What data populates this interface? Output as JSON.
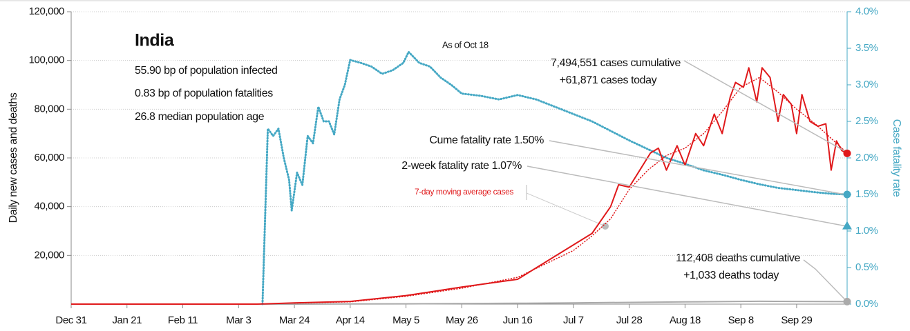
{
  "chart_data": {
    "type": "line",
    "title": "India",
    "subtitle": "As of Oct 18",
    "stats": [
      "55.90 bp of population infected",
      "0.83 bp of population fatalities",
      "26.8 median population age"
    ],
    "ylabel": "Daily new cases and deaths",
    "y2label": "Case fatality rate",
    "xlim": [
      0,
      292
    ],
    "xticks": [
      {
        "value": 0,
        "label": "Dec 31"
      },
      {
        "value": 21,
        "label": "Jan 21"
      },
      {
        "value": 42,
        "label": "Feb 11"
      },
      {
        "value": 63,
        "label": "Mar 3"
      },
      {
        "value": 84,
        "label": "Mar 24"
      },
      {
        "value": 105,
        "label": "Apr 14"
      },
      {
        "value": 126,
        "label": "May 5"
      },
      {
        "value": 147,
        "label": "May 26"
      },
      {
        "value": 168,
        "label": "Jun 16"
      },
      {
        "value": 189,
        "label": "Jul 7"
      },
      {
        "value": 210,
        "label": "Jul 28"
      },
      {
        "value": 231,
        "label": "Aug 18"
      },
      {
        "value": 252,
        "label": "Sep 8"
      },
      {
        "value": 273,
        "label": "Sep 29"
      }
    ],
    "ylim": [
      0,
      120000
    ],
    "yticks": [
      {
        "value": 20000,
        "label": "20,000"
      },
      {
        "value": 40000,
        "label": "40,000"
      },
      {
        "value": 60000,
        "label": "60,000"
      },
      {
        "value": 80000,
        "label": "80,000"
      },
      {
        "value": 100000,
        "label": "100,000"
      },
      {
        "value": 120000,
        "label": "120,000"
      }
    ],
    "y2lim": [
      0,
      4
    ],
    "y2ticks": [
      {
        "value": 0,
        "label": "0.0%"
      },
      {
        "value": 0.5,
        "label": "0.5%"
      },
      {
        "value": 1,
        "label": "1.0%"
      },
      {
        "value": 1.5,
        "label": "1.5%"
      },
      {
        "value": 2,
        "label": "2.0%"
      },
      {
        "value": 2.5,
        "label": "2.5%"
      },
      {
        "value": 3,
        "label": "3.0%"
      },
      {
        "value": 3.5,
        "label": "3.5%"
      },
      {
        "value": 4,
        "label": "4.0%"
      }
    ],
    "grid": true,
    "series": [
      {
        "color": "#aaaaaa",
        "style": "solid",
        "x": [
          0,
          84,
          126,
          168,
          189,
          231,
          259,
          292
        ],
        "values": [
          0,
          10,
          100,
          350,
          500,
          900,
          1150,
          1033
        ]
      },
      {
        "color": "#45a8c4",
        "style": "dotted",
        "axis": "y2",
        "x": [
          72,
          74,
          76,
          78,
          80,
          82,
          83,
          85,
          87,
          89,
          91,
          93,
          95,
          97,
          99,
          101,
          103,
          105,
          109,
          113,
          117,
          121,
          125,
          127,
          131,
          135,
          139,
          143,
          147,
          154,
          161,
          168,
          175,
          182,
          189,
          196,
          203,
          210,
          217,
          224,
          231,
          238,
          245,
          252,
          259,
          266,
          273,
          280,
          286,
          292
        ],
        "values": [
          0,
          2.4,
          2.3,
          2.4,
          2.0,
          1.7,
          1.28,
          1.8,
          1.63,
          2.3,
          2.2,
          2.7,
          2.5,
          2.5,
          2.32,
          2.8,
          3.0,
          3.34,
          3.3,
          3.25,
          3.15,
          3.2,
          3.3,
          3.45,
          3.3,
          3.25,
          3.1,
          3.0,
          2.88,
          2.85,
          2.8,
          2.86,
          2.8,
          2.7,
          2.6,
          2.5,
          2.37,
          2.24,
          2.12,
          2.0,
          1.92,
          1.83,
          1.77,
          1.7,
          1.64,
          1.59,
          1.56,
          1.53,
          1.51,
          1.5
        ]
      },
      {
        "color": "#e0191b",
        "style": "solid",
        "x": [
          0,
          70,
          84,
          105,
          126,
          147,
          168,
          189,
          196,
          203,
          206,
          210,
          214,
          218,
          221,
          224,
          228,
          231,
          235,
          238,
          242,
          245,
          248,
          250,
          253,
          255,
          258,
          260,
          263,
          266,
          268,
          271,
          273,
          275,
          278,
          281,
          284,
          286,
          288,
          290,
          292
        ],
        "values": [
          0,
          0,
          500,
          1100,
          3500,
          7000,
          10200,
          24300,
          29000,
          40000,
          49000,
          48000,
          55000,
          62000,
          64000,
          55000,
          65000,
          57000,
          70000,
          65000,
          78000,
          70000,
          85000,
          91000,
          89000,
          97000,
          83000,
          97000,
          93000,
          75000,
          86000,
          82000,
          70000,
          86000,
          75000,
          73000,
          74000,
          55000,
          67000,
          63000,
          61871
        ]
      },
      {
        "name": "7-day moving average cases",
        "color": "#e0191b",
        "style": "dotted",
        "x": [
          84,
          105,
          126,
          147,
          168,
          189,
          196,
          203,
          210,
          217,
          224,
          231,
          238,
          245,
          252,
          259,
          266,
          273,
          280,
          286,
          292
        ],
        "values": [
          400,
          900,
          3200,
          6500,
          11000,
          22000,
          28000,
          35000,
          47000,
          55000,
          61000,
          64000,
          70000,
          79000,
          89000,
          93000,
          87000,
          80000,
          74000,
          68000,
          62000
        ]
      }
    ],
    "annotations": {
      "cases": {
        "lines": [
          "7,494,551 cases cumulative",
          "+61,871 cases today"
        ],
        "value": 61871,
        "color": "#e0191b"
      },
      "cfr": {
        "label": "Cume fatality rate 1.50%",
        "value": 1.5,
        "axis": "y2",
        "color": "#45a8c4"
      },
      "cfr2w": {
        "label": "2-week fatality rate 1.07%",
        "value": 1.07,
        "axis": "y2",
        "color": "#45a8c4"
      },
      "deaths": {
        "lines": [
          "112,408 deaths cumulative",
          "+1,033 deaths today"
        ],
        "value": 1033,
        "color": "#aaaaaa"
      }
    }
  }
}
